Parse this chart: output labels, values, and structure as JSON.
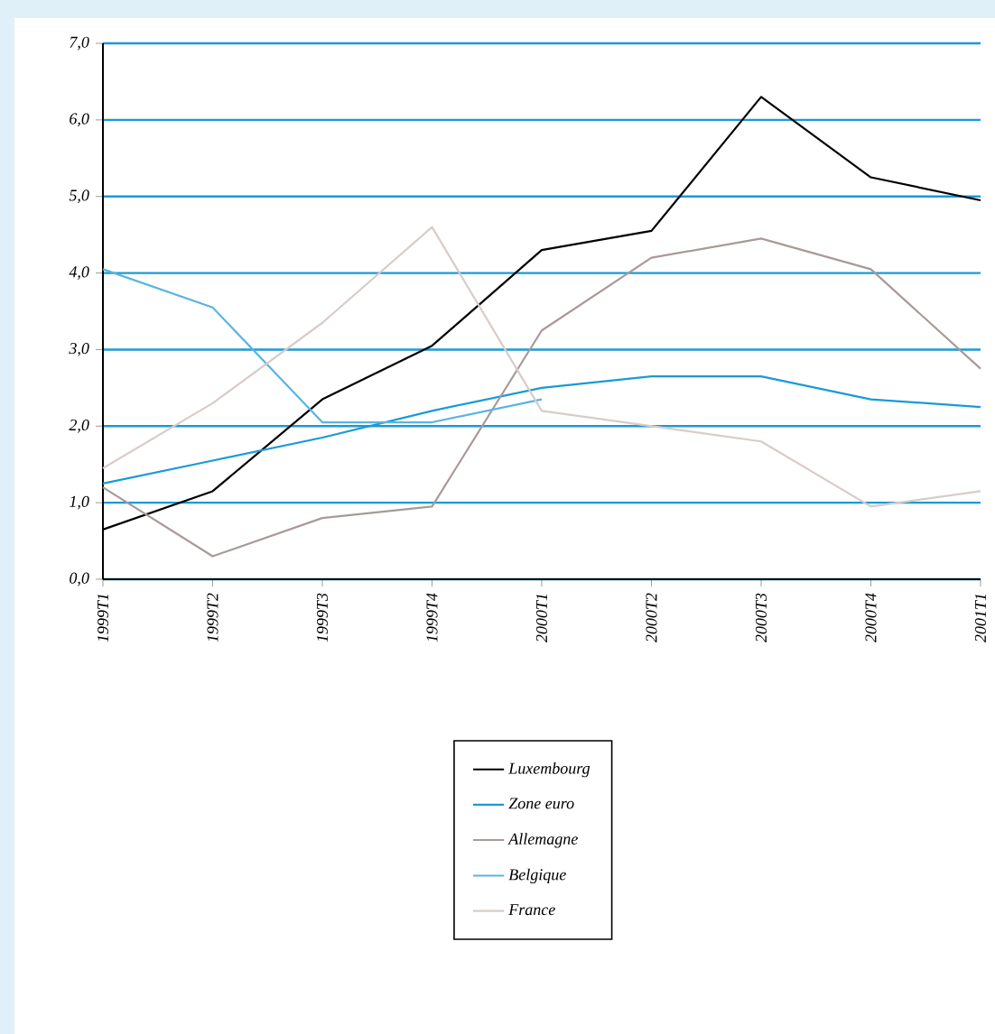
{
  "chart_data": {
    "type": "line",
    "categories": [
      "1999T1",
      "1999T2",
      "1999T3",
      "1999T4",
      "2000T1",
      "2000T2",
      "2000T3",
      "2000T4",
      "2001T1"
    ],
    "series": [
      {
        "name": "Luxembourg",
        "color": "#000000",
        "values": [
          0.65,
          1.15,
          2.35,
          3.05,
          4.3,
          4.55,
          6.3,
          5.25,
          4.95
        ]
      },
      {
        "name": "Zone euro",
        "color": "#1a9ad6",
        "values": [
          1.25,
          1.55,
          1.85,
          2.2,
          2.5,
          2.65,
          2.65,
          2.35,
          2.25
        ]
      },
      {
        "name": "Allemagne",
        "color": "#a89a98",
        "values": [
          1.2,
          0.3,
          0.8,
          0.95,
          3.25,
          4.2,
          4.45,
          4.05,
          2.75
        ]
      },
      {
        "name": "Belgique",
        "color": "#5ab4e0",
        "values": [
          4.05,
          3.55,
          2.05,
          2.05,
          2.35,
          null,
          null,
          null,
          null
        ]
      },
      {
        "name": "France",
        "color": "#d8ccc8",
        "values": [
          1.45,
          2.3,
          3.35,
          4.6,
          2.2,
          2.0,
          1.8,
          0.95,
          1.15
        ]
      }
    ],
    "ylim": [
      0,
      7
    ],
    "yticks": [
      {
        "value": 0,
        "label": "0,0"
      },
      {
        "value": 1,
        "label": "1,0"
      },
      {
        "value": 2,
        "label": "2,0"
      },
      {
        "value": 3,
        "label": "3,0"
      },
      {
        "value": 4,
        "label": "4,0"
      },
      {
        "value": 5,
        "label": "5,0"
      },
      {
        "value": 6,
        "label": "6,0"
      },
      {
        "value": 7,
        "label": "7,0"
      }
    ],
    "grid": "y",
    "legend": "bottom",
    "line_style": "solid",
    "marker": "none"
  }
}
